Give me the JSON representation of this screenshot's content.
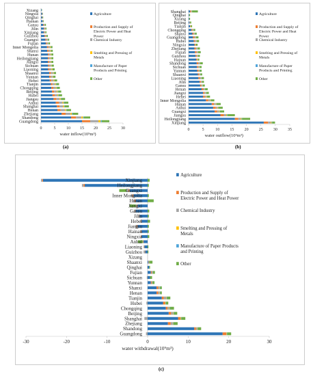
{
  "colors": {
    "agriculture": "#2e75b6",
    "electric": "#ed7d31",
    "chemical": "#a5a5a5",
    "metals": "#ffc000",
    "paper": "#4ea4d9",
    "other": "#70ad47"
  },
  "chart_data": [
    {
      "type": "bar",
      "orientation": "horizontal",
      "stacked": true,
      "caption": "(a)",
      "xlabel": "water inflow(10⁹m³)",
      "xlim": [
        0,
        30
      ],
      "xticks": [
        0,
        5,
        10,
        15,
        20,
        25,
        30
      ],
      "grid": false,
      "legend_position": "right",
      "categories": [
        "Xizang",
        "Ningxia",
        "Qinghai",
        "Hainan",
        "Gansu",
        "Jilin",
        "Xinjiang",
        "Guizhou",
        "Guangxi",
        "Fujian",
        "Inner Mongolia",
        "Shanxi",
        "Hunan",
        "Heilongjiang",
        "Jiangxi",
        "Sichuan",
        "Liaoning",
        "Shaanxi",
        "Yunnan",
        "Hebei",
        "Tianjin",
        "Chongqing",
        "Beijing",
        "Hubei",
        "Jiangsu",
        "Anhui",
        "Shanghai",
        "Henan",
        "Zhejiang",
        "Shandong",
        "Guangdong"
      ],
      "series": [
        {
          "name": "Agriculture",
          "key": "agriculture",
          "values": [
            0.2,
            0.4,
            0.4,
            0.6,
            0.8,
            1.0,
            1.0,
            1.3,
            1.6,
            1.8,
            2.2,
            2.3,
            2.5,
            2.5,
            2.5,
            2.6,
            2.6,
            3.0,
            3.0,
            3.2,
            3.6,
            3.8,
            4.0,
            4.2,
            4.6,
            5.4,
            5.8,
            6.0,
            7.5,
            11.0,
            15.0
          ]
        },
        {
          "name": "Production and Supply of Electric Power and Heat Power",
          "key": "electric",
          "values": [
            0.0,
            0.1,
            0.1,
            0.1,
            0.2,
            0.2,
            0.2,
            0.3,
            0.3,
            0.3,
            0.5,
            0.5,
            0.4,
            0.4,
            0.4,
            0.4,
            0.5,
            0.6,
            0.5,
            0.6,
            0.6,
            0.7,
            0.8,
            0.8,
            1.0,
            1.1,
            1.0,
            1.2,
            1.5,
            1.8,
            3.0
          ]
        },
        {
          "name": "Chemical Industry",
          "key": "chemical",
          "values": [
            0.1,
            0.1,
            0.1,
            0.1,
            0.3,
            0.3,
            0.3,
            0.3,
            0.5,
            0.5,
            0.6,
            0.6,
            0.6,
            0.6,
            0.6,
            0.7,
            0.7,
            0.8,
            0.7,
            0.8,
            0.9,
            0.9,
            1.0,
            1.0,
            1.2,
            1.4,
            1.3,
            1.6,
            1.8,
            2.0,
            3.0
          ]
        },
        {
          "name": "Smelting and Pressing of Metals",
          "key": "metals",
          "values": [
            0.0,
            0.0,
            0.0,
            0.0,
            0.1,
            0.1,
            0.1,
            0.1,
            0.1,
            0.1,
            0.2,
            0.2,
            0.2,
            0.2,
            0.2,
            0.2,
            0.3,
            0.2,
            0.2,
            0.3,
            0.3,
            0.3,
            0.3,
            0.3,
            0.4,
            0.4,
            0.4,
            0.4,
            0.5,
            0.6,
            0.8
          ]
        },
        {
          "name": "Manufacture of Paper Products and Printing",
          "key": "paper",
          "values": [
            0.0,
            0.0,
            0.0,
            0.0,
            0.1,
            0.1,
            0.1,
            0.1,
            0.1,
            0.1,
            0.1,
            0.1,
            0.1,
            0.1,
            0.1,
            0.1,
            0.1,
            0.1,
            0.1,
            0.1,
            0.2,
            0.2,
            0.2,
            0.2,
            0.2,
            0.2,
            0.2,
            0.2,
            0.3,
            0.3,
            0.4
          ]
        },
        {
          "name": "Other",
          "key": "other",
          "values": [
            0.1,
            0.1,
            0.2,
            0.2,
            0.3,
            0.3,
            0.3,
            0.4,
            0.4,
            0.5,
            0.6,
            0.6,
            0.7,
            0.7,
            0.7,
            0.7,
            0.8,
            0.8,
            0.8,
            0.9,
            1.0,
            1.0,
            1.1,
            1.2,
            1.4,
            1.5,
            1.5,
            1.6,
            2.0,
            2.3,
            2.8
          ]
        }
      ]
    },
    {
      "type": "bar",
      "orientation": "horizontal",
      "stacked": true,
      "caption": "(b)",
      "xlabel": "water outflow(10⁹m³)",
      "xlim": [
        0,
        35
      ],
      "xticks": [
        0,
        5,
        10,
        15,
        20,
        25,
        30,
        35
      ],
      "grid": false,
      "legend_position": "right",
      "categories": [
        "Shanghai",
        "Qinghai",
        "Xizang",
        "Beijing",
        "Tianjin",
        "Chongqing",
        "Shanxi",
        "Guangdong",
        "Hubei",
        "Ningxia",
        "Zhejiang",
        "Fujian",
        "Guizhou",
        "Hainan",
        "Shandong",
        "Sichuan",
        "Yunnan",
        "Shaanxi",
        "Liaoning",
        "Jilin",
        "Gansu",
        "Henan",
        "Jiangxi",
        "Hebei",
        "Inner Mongolia",
        "Hunan",
        "Anhui",
        "Guangxi",
        "Jiangsu",
        "Heilongjiang",
        "Xinjiang"
      ],
      "series": [
        {
          "name": "Agriculture",
          "key": "agriculture",
          "values": [
            0.5,
            0.2,
            0.2,
            0.3,
            0.5,
            1.0,
            1.3,
            1.5,
            1.8,
            2.0,
            2.0,
            2.2,
            2.4,
            2.6,
            2.8,
            2.9,
            3.0,
            3.2,
            3.4,
            3.8,
            4.0,
            4.5,
            5.0,
            5.0,
            6.0,
            8.0,
            8.5,
            9.0,
            11.0,
            16.0,
            26.0
          ]
        },
        {
          "name": "Production and Supply of Electric Power and Heat Power",
          "key": "electric",
          "values": [
            0.3,
            0.0,
            0.0,
            0.1,
            0.1,
            0.3,
            0.4,
            0.5,
            0.4,
            0.3,
            0.5,
            0.5,
            0.4,
            0.3,
            0.5,
            0.4,
            0.4,
            0.4,
            0.5,
            0.4,
            0.4,
            0.6,
            0.5,
            0.6,
            0.8,
            0.8,
            0.9,
            0.9,
            1.2,
            1.2,
            1.5
          ]
        },
        {
          "name": "Chemical Industry",
          "key": "chemical",
          "values": [
            0.2,
            0.0,
            0.0,
            0.1,
            0.1,
            0.2,
            0.3,
            0.4,
            0.4,
            0.2,
            0.4,
            0.4,
            0.3,
            0.2,
            0.5,
            0.3,
            0.3,
            0.3,
            0.4,
            0.3,
            0.3,
            0.4,
            0.4,
            0.5,
            0.6,
            0.6,
            0.6,
            0.6,
            0.8,
            0.8,
            0.9
          ]
        },
        {
          "name": "Smelting and Pressing of Metals",
          "key": "metals",
          "values": [
            0.1,
            0.0,
            0.0,
            0.0,
            0.1,
            0.1,
            0.1,
            0.1,
            0.1,
            0.1,
            0.1,
            0.1,
            0.1,
            0.1,
            0.1,
            0.1,
            0.1,
            0.1,
            0.1,
            0.1,
            0.1,
            0.1,
            0.1,
            0.2,
            0.2,
            0.2,
            0.2,
            0.2,
            0.3,
            0.3,
            0.3
          ]
        },
        {
          "name": "Manufacture of Paper Products and Printing",
          "key": "paper",
          "values": [
            0.1,
            0.0,
            0.0,
            0.0,
            0.0,
            0.1,
            0.1,
            0.1,
            0.1,
            0.0,
            0.1,
            0.1,
            0.1,
            0.0,
            0.1,
            0.1,
            0.1,
            0.1,
            0.1,
            0.1,
            0.1,
            0.1,
            0.1,
            0.1,
            0.1,
            0.1,
            0.1,
            0.1,
            0.2,
            0.2,
            0.2
          ]
        },
        {
          "name": "Other",
          "key": "other",
          "values": [
            2.0,
            0.3,
            0.3,
            0.4,
            0.4,
            0.6,
            0.6,
            0.8,
            0.8,
            0.5,
            0.8,
            0.9,
            0.6,
            0.5,
            0.9,
            0.7,
            0.6,
            0.6,
            0.8,
            0.6,
            0.7,
            0.9,
            0.9,
            1.0,
            1.2,
            1.4,
            1.5,
            1.5,
            2.5,
            2.8,
            1.0
          ]
        }
      ]
    },
    {
      "type": "bar",
      "orientation": "horizontal",
      "stacked": true,
      "diverging": true,
      "caption": "(c)",
      "xlabel": "water withdrawal(10⁹m³)",
      "xlim": [
        -30,
        30
      ],
      "xticks": [
        -30,
        -20,
        -10,
        0,
        10,
        20,
        30
      ],
      "grid": false,
      "legend_position": "right",
      "categories": [
        "Xinjiang",
        "Heilongjiang",
        "Guangxi",
        "Inner Mongolia",
        "Hunan",
        "Jiangxi",
        "Gansu",
        "Jilin",
        "Hebei",
        "Jiangsu",
        "Hainan",
        "Ningxia",
        "Anhui",
        "Liaoning",
        "Guizhou",
        "Xizang",
        "Shaanxi",
        "Qinghai",
        "Fujian",
        "Sichuan",
        "Yunnan",
        "Shanxi",
        "Henan",
        "Tianjin",
        "Hubei",
        "Chongqing",
        "Beijing",
        "Shanghai",
        "Zhejiang",
        "Shandong",
        "Guangdong"
      ],
      "series": [
        {
          "name": "Agriculture",
          "key": "agriculture",
          "values": [
            -25.8,
            -15.5,
            -4.5,
            -3.5,
            -3.0,
            -2.5,
            -3.0,
            -2.0,
            -1.5,
            -2.5,
            -1.5,
            -1.5,
            -1.0,
            -0.8,
            -0.6,
            0.0,
            0.2,
            0.4,
            0.8,
            0.6,
            0.8,
            2.2,
            2.2,
            3.5,
            3.8,
            4.5,
            5.2,
            7.5,
            5.0,
            11.5,
            18.5
          ]
        },
        {
          "name": "Production and Supply of Electric Power and Heat Power",
          "key": "electric",
          "values": [
            -0.2,
            -0.3,
            -0.2,
            -0.2,
            -0.2,
            -0.1,
            -0.1,
            -0.1,
            -0.1,
            -0.2,
            -0.1,
            -0.1,
            -0.1,
            -0.1,
            -0.1,
            0.0,
            0.1,
            0.0,
            0.2,
            0.0,
            0.2,
            0.4,
            0.4,
            0.5,
            0.5,
            0.4,
            0.6,
            0.6,
            0.7,
            0.4,
            0.9
          ]
        },
        {
          "name": "Chemical Industry",
          "key": "chemical",
          "values": [
            -0.3,
            -0.4,
            -0.5,
            -0.4,
            -0.3,
            -0.3,
            -0.2,
            -0.2,
            -0.2,
            -0.3,
            -0.2,
            -0.1,
            -0.1,
            -0.1,
            -0.3,
            0.0,
            0.1,
            -0.1,
            0.3,
            -0.2,
            0.2,
            0.3,
            0.3,
            0.6,
            -0.3,
            0.4,
            0.5,
            -0.8,
            0.5,
            0.3,
            -0.4
          ]
        },
        {
          "name": "Smelting and Pressing of Metals",
          "key": "metals",
          "values": [
            0.0,
            0.0,
            0.0,
            0.0,
            0.0,
            0.0,
            0.0,
            0.0,
            0.0,
            0.0,
            0.0,
            0.0,
            0.0,
            0.0,
            0.0,
            0.0,
            0.0,
            0.0,
            0.0,
            0.0,
            0.0,
            0.1,
            0.1,
            0.1,
            0.1,
            0.1,
            0.1,
            0.1,
            0.1,
            0.1,
            0.1
          ]
        },
        {
          "name": "Manufacture of Paper Products and Printing",
          "key": "paper",
          "values": [
            0.0,
            0.0,
            0.0,
            0.0,
            0.0,
            0.0,
            0.0,
            0.0,
            0.0,
            0.0,
            0.0,
            0.0,
            0.0,
            0.0,
            0.0,
            0.0,
            0.0,
            0.0,
            0.0,
            0.0,
            0.0,
            0.1,
            0.1,
            0.1,
            0.1,
            0.1,
            0.1,
            0.1,
            0.1,
            0.1,
            0.1
          ]
        },
        {
          "name": "Other",
          "key": "other",
          "values": [
            0.5,
            0.3,
            -1.8,
            0.3,
            1.5,
            -1.5,
            0.4,
            0.3,
            0.6,
            0.3,
            0.3,
            0.4,
            -1.2,
            0.2,
            0.2,
            0.0,
            0.8,
            0.2,
            0.5,
            0.5,
            0.5,
            0.4,
            0.4,
            0.8,
            0.6,
            1.0,
            0.8,
            1.0,
            1.0,
            0.8,
            1.0
          ]
        }
      ]
    }
  ]
}
